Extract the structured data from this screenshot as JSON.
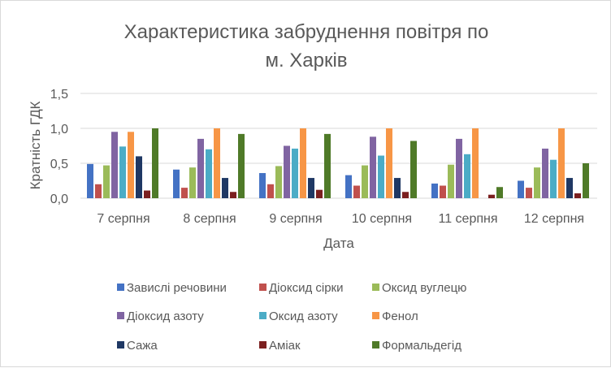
{
  "chart_data": {
    "type": "bar",
    "title": [
      "Характеристика  забруднення повітря по",
      "м. Харків"
    ],
    "xlabel": "Дата",
    "ylabel": "Кратність ГДК",
    "ylim": [
      0,
      1.5
    ],
    "yticks": [
      "0,0",
      "0,5",
      "1,0",
      "1,5"
    ],
    "grid": true,
    "legend_position": "bottom",
    "categories": [
      "7 серпня",
      "8 серпня",
      "9 серпня",
      "10 серпня",
      "11 серпня",
      "12 серпня"
    ],
    "series": [
      {
        "name": "Завислі речовини",
        "color": "#4472c4",
        "values": [
          0.49,
          0.41,
          0.36,
          0.33,
          0.21,
          0.25
        ]
      },
      {
        "name": "Діоксид сірки",
        "color": "#c0504d",
        "values": [
          0.2,
          0.15,
          0.2,
          0.18,
          0.18,
          0.15
        ]
      },
      {
        "name": "Оксид вуглецю",
        "color": "#9bbb59",
        "values": [
          0.47,
          0.44,
          0.46,
          0.47,
          0.48,
          0.44
        ]
      },
      {
        "name": "Діоксид азоту",
        "color": "#8064a2",
        "values": [
          0.95,
          0.85,
          0.75,
          0.88,
          0.85,
          0.71
        ]
      },
      {
        "name": "Оксид азоту",
        "color": "#4bacc6",
        "values": [
          0.74,
          0.7,
          0.71,
          0.61,
          0.63,
          0.55
        ]
      },
      {
        "name": "Фенол",
        "color": "#f79646",
        "values": [
          0.95,
          1.0,
          1.0,
          1.0,
          1.0,
          1.0
        ]
      },
      {
        "name": "Сажа",
        "color": "#1f3864",
        "values": [
          0.6,
          0.29,
          0.29,
          0.29,
          0,
          0.29
        ]
      },
      {
        "name": "Аміак",
        "color": "#7b1f1f",
        "values": [
          0.11,
          0.09,
          0.12,
          0.09,
          0.05,
          0.07
        ]
      },
      {
        "name": "Формальдегід",
        "color": "#4f7a28",
        "values": [
          1.0,
          0.92,
          0.92,
          0.82,
          0.16,
          0.5
        ]
      }
    ]
  }
}
